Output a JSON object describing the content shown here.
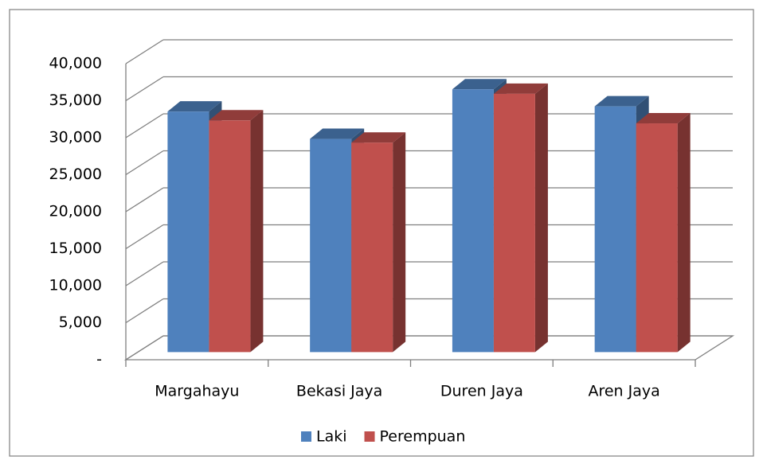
{
  "chart_data": {
    "type": "bar3d",
    "categories": [
      "Margahayu",
      "Bekasi Jaya",
      "Duren Jaya",
      "Aren Jaya"
    ],
    "series": [
      {
        "name": "Laki",
        "color": "#4f81bd",
        "values": [
          32500,
          28800,
          35500,
          33200
        ]
      },
      {
        "name": "Perempuan",
        "color": "#c0504d",
        "values": [
          31300,
          28300,
          34900,
          30900
        ]
      }
    ],
    "ylim": [
      0,
      40000
    ],
    "yticks": [
      {
        "value": 0,
        "label": "-"
      },
      {
        "value": 5000,
        "label": "5,000"
      },
      {
        "value": 10000,
        "label": "10,000"
      },
      {
        "value": 15000,
        "label": "15,000"
      },
      {
        "value": 20000,
        "label": "20,000"
      },
      {
        "value": 25000,
        "label": "25,000"
      },
      {
        "value": 30000,
        "label": "30,000"
      },
      {
        "value": 35000,
        "label": "35,000"
      },
      {
        "value": 40000,
        "label": "40,000"
      }
    ],
    "grid": true,
    "legend": "bottom"
  }
}
